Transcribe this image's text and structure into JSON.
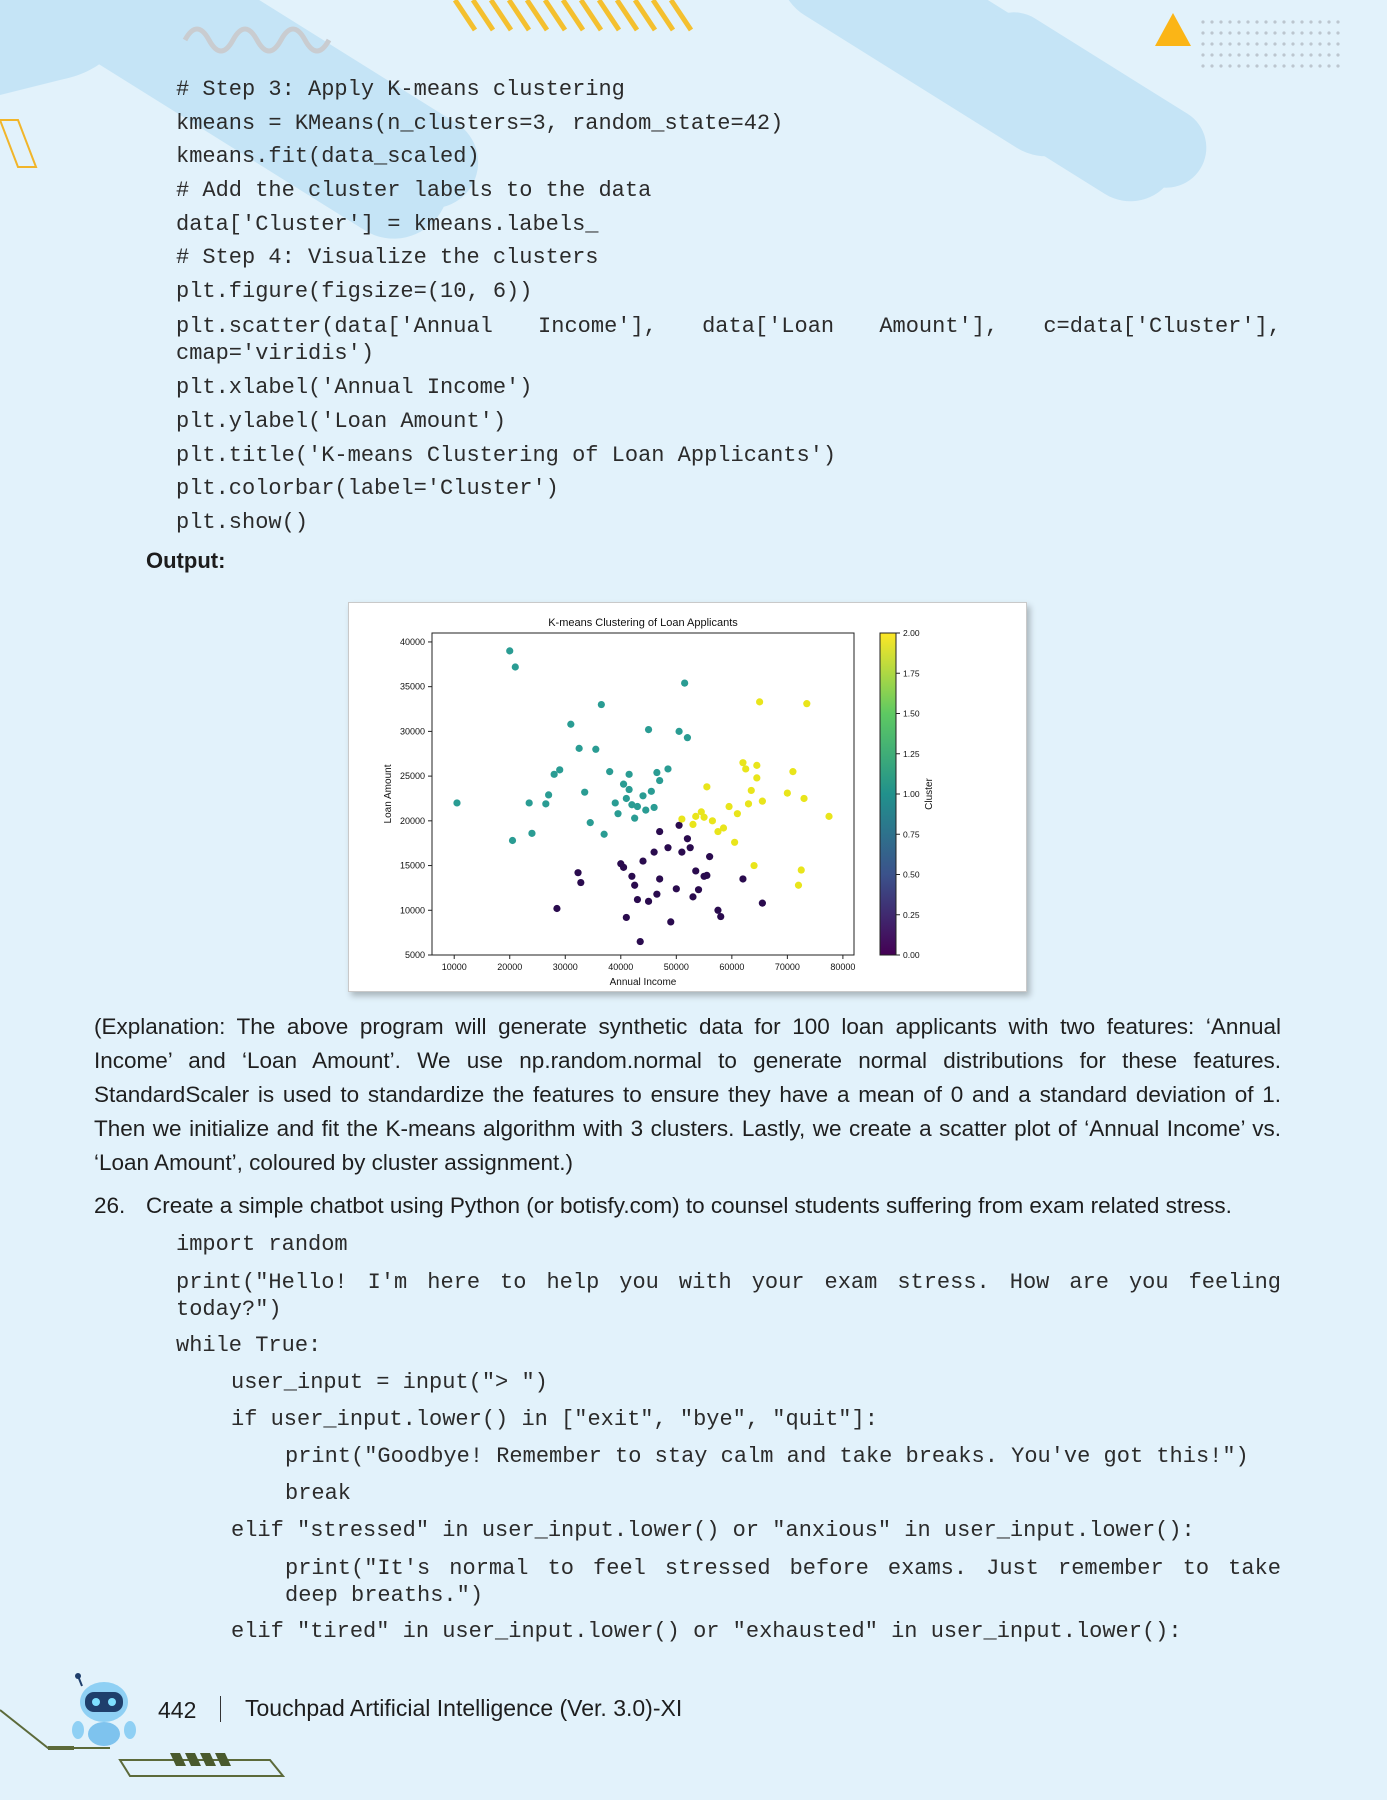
{
  "code_block_1": [
    "# Step 3: Apply K-means clustering",
    "kmeans = KMeans(n_clusters=3, random_state=42)",
    "kmeans.fit(data_scaled)",
    "# Add the cluster labels to the data",
    "data['Cluster'] = kmeans.labels_",
    "# Step 4: Visualize the clusters",
    "plt.figure(figsize=(10, 6))",
    "plt.scatter(data['Annual Income'], data['Loan Amount'], c=data['Cluster'], cmap='viridis')",
    "plt.xlabel('Annual Income')",
    "plt.ylabel('Loan Amount')",
    "plt.title('K-means Clustering of Loan Applicants')",
    "plt.colorbar(label='Cluster')",
    "plt.show()"
  ],
  "output_label": "Output:",
  "chart_data": {
    "type": "scatter",
    "title": "K-means Clustering of Loan Applicants",
    "xlabel": "Annual Income",
    "ylabel": "Loan Amount",
    "xlim": [
      6000,
      82000
    ],
    "ylim": [
      5000,
      41000
    ],
    "xticks": [
      "10000",
      "20000",
      "30000",
      "40000",
      "50000",
      "60000",
      "70000",
      "80000"
    ],
    "yticks": [
      "5000",
      "10000",
      "15000",
      "20000",
      "25000",
      "30000",
      "35000",
      "40000"
    ],
    "colorbar_label": "Cluster",
    "colorbar_ticks": [
      "0.00",
      "0.25",
      "0.50",
      "0.75",
      "1.00",
      "1.25",
      "1.50",
      "1.75",
      "2.00"
    ],
    "colormap": "viridis",
    "cluster_colors": {
      "0": "#2a0b4e",
      "1": "#2a9c93",
      "2": "#e9e51b"
    },
    "series": [
      {
        "cluster": 0,
        "points": [
          [
            28500,
            10200
          ],
          [
            32300,
            14200
          ],
          [
            32800,
            13100
          ],
          [
            40000,
            15200
          ],
          [
            40500,
            14800
          ],
          [
            41000,
            9200
          ],
          [
            42000,
            13800
          ],
          [
            42500,
            12800
          ],
          [
            43000,
            11200
          ],
          [
            43500,
            6500
          ],
          [
            44000,
            15500
          ],
          [
            45000,
            11000
          ],
          [
            46000,
            16500
          ],
          [
            46500,
            11800
          ],
          [
            47000,
            18800
          ],
          [
            47000,
            13500
          ],
          [
            48500,
            17000
          ],
          [
            49000,
            8700
          ],
          [
            50000,
            12400
          ],
          [
            50500,
            19500
          ],
          [
            51000,
            16500
          ],
          [
            52000,
            18000
          ],
          [
            52500,
            17000
          ],
          [
            53000,
            11500
          ],
          [
            53500,
            14400
          ],
          [
            54000,
            12300
          ],
          [
            55000,
            13800
          ],
          [
            55500,
            13900
          ],
          [
            56000,
            16000
          ],
          [
            57500,
            10000
          ],
          [
            58000,
            9300
          ],
          [
            62000,
            13500
          ],
          [
            65500,
            10800
          ]
        ]
      },
      {
        "cluster": 1,
        "points": [
          [
            10500,
            22000
          ],
          [
            20000,
            39000
          ],
          [
            20500,
            17800
          ],
          [
            21000,
            37200
          ],
          [
            23500,
            22000
          ],
          [
            24000,
            18600
          ],
          [
            26500,
            21900
          ],
          [
            27000,
            22900
          ],
          [
            28000,
            25200
          ],
          [
            29000,
            25700
          ],
          [
            31000,
            30800
          ],
          [
            32500,
            28100
          ],
          [
            33500,
            23200
          ],
          [
            34500,
            19800
          ],
          [
            35500,
            28000
          ],
          [
            36500,
            33000
          ],
          [
            37000,
            18500
          ],
          [
            38000,
            25500
          ],
          [
            39000,
            22000
          ],
          [
            39500,
            20800
          ],
          [
            40500,
            24100
          ],
          [
            41000,
            22500
          ],
          [
            41500,
            25200
          ],
          [
            41500,
            23500
          ],
          [
            42000,
            21800
          ],
          [
            42500,
            20300
          ],
          [
            43000,
            21600
          ],
          [
            44000,
            22800
          ],
          [
            44500,
            21200
          ],
          [
            45000,
            30200
          ],
          [
            45500,
            23300
          ],
          [
            46000,
            21500
          ],
          [
            46500,
            25400
          ],
          [
            47000,
            24500
          ],
          [
            48500,
            25800
          ],
          [
            50500,
            30000
          ],
          [
            51500,
            35400
          ],
          [
            52000,
            29300
          ]
        ]
      },
      {
        "cluster": 2,
        "points": [
          [
            51000,
            20200
          ],
          [
            53000,
            19600
          ],
          [
            53500,
            20500
          ],
          [
            54500,
            21000
          ],
          [
            55000,
            20400
          ],
          [
            55500,
            23800
          ],
          [
            56500,
            20000
          ],
          [
            57500,
            18800
          ],
          [
            58500,
            19200
          ],
          [
            59500,
            21600
          ],
          [
            60500,
            17600
          ],
          [
            61000,
            20800
          ],
          [
            62000,
            26500
          ],
          [
            62500,
            25800
          ],
          [
            63000,
            21900
          ],
          [
            63500,
            23400
          ],
          [
            64000,
            15000
          ],
          [
            64500,
            26200
          ],
          [
            64500,
            24800
          ],
          [
            65000,
            33300
          ],
          [
            65500,
            22200
          ],
          [
            70000,
            23100
          ],
          [
            71000,
            25500
          ],
          [
            72000,
            12800
          ],
          [
            72500,
            14500
          ],
          [
            73000,
            22500
          ],
          [
            73500,
            33100
          ],
          [
            77500,
            20500
          ]
        ]
      }
    ]
  },
  "explanation": "(Explanation: The above program will generate synthetic data for 100 loan applicants with two features: ‘Annual Income’ and ‘Loan Amount’. We use np.random.normal to generate normal distributions for these features. StandardScaler is used to standardize the features to ensure they have a mean of 0 and a standard deviation of 1. Then we initialize and fit the K-means algorithm with 3 clusters. Lastly, we create a scatter plot of ‘Annual Income’ vs. ‘Loan Amount’, coloured by cluster assignment.)",
  "question": {
    "number": "26.",
    "text": "Create a simple chatbot using Python (or botisfy.com) to counsel students suffering from exam related stress."
  },
  "code_block_2": {
    "import": "import random",
    "print_hello": "print(\"Hello! I'm here to help you with your exam stress. How are you feeling today?\")",
    "while": "while True:",
    "user_input": "user_input = input(\"> \")",
    "if_exit": "if user_input.lower() in [\"exit\", \"bye\", \"quit\"]:",
    "print_goodbye": "print(\"Goodbye! Remember to stay calm and take breaks. You've got this!\")",
    "break": "break",
    "elif_stressed": "elif \"stressed\" in user_input.lower() or \"anxious\" in user_input.lower():",
    "print_normal": "print(\"It's normal to feel stressed before exams. Just remember to take deep breaths.\")",
    "elif_tired": "elif \"tired\" in user_input.lower() or \"exhausted\" in user_input.lower():"
  },
  "footer": {
    "page_number": "442",
    "book_title": "Touchpad Artificial Intelligence (Ver. 3.0)-XI"
  }
}
